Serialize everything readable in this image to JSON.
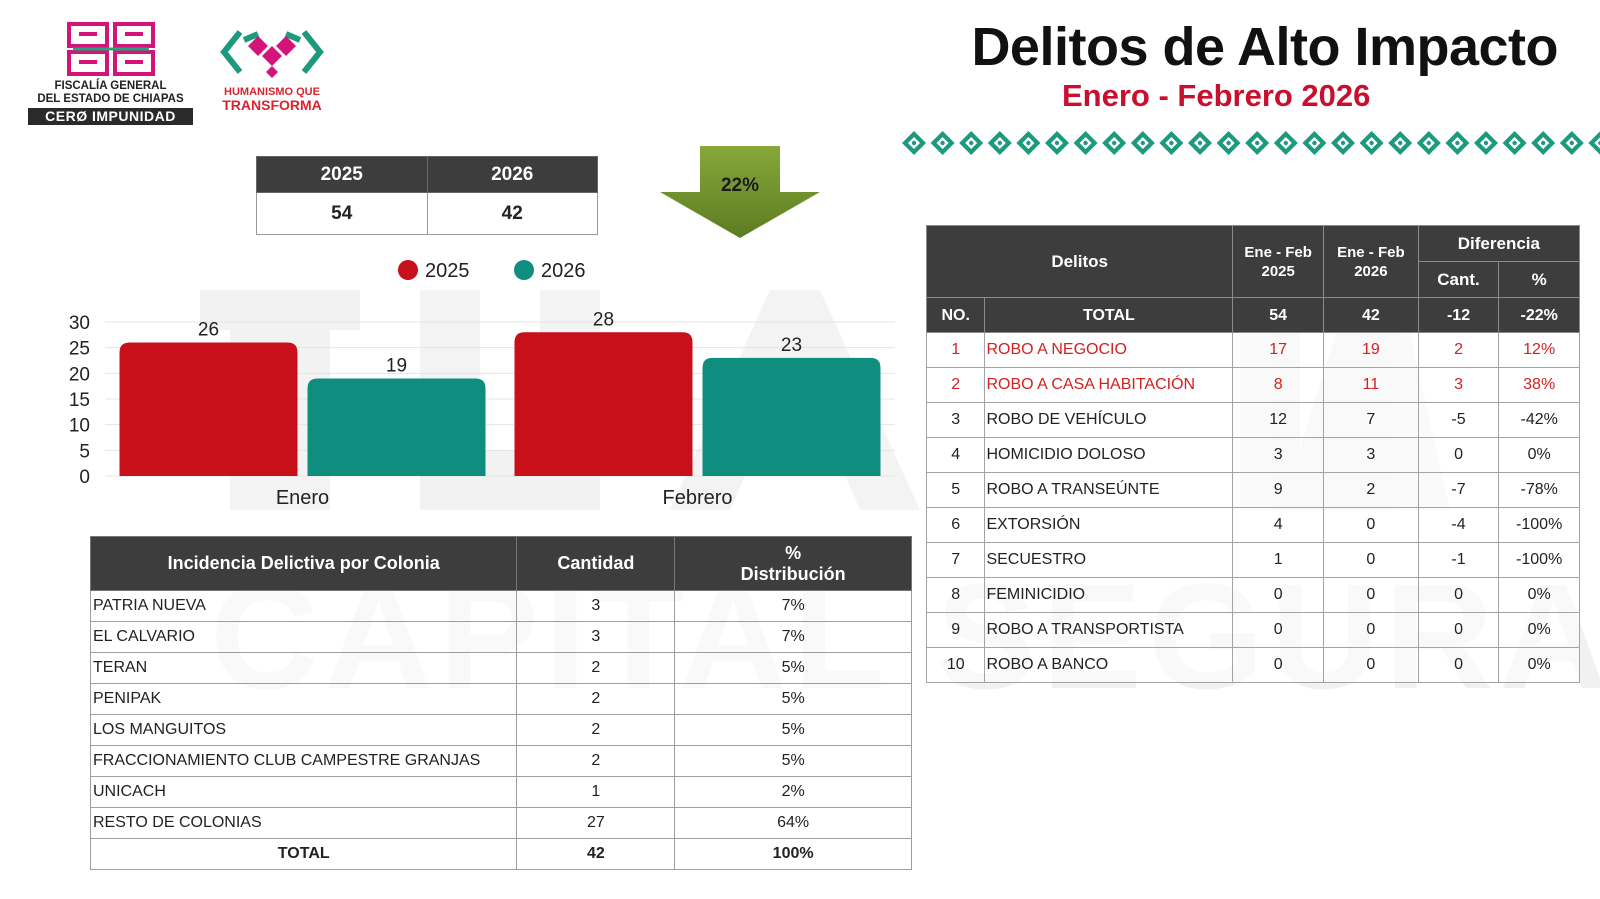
{
  "logos": {
    "fge_line1": "FISCALÍA GENERAL",
    "fge_line2": "DEL ESTADO DE CHIAPAS",
    "fge_slogan": "CERØ IMPUNIDAD",
    "hqt_line1": "HUMANISMO QUE",
    "hqt_line2": "TRANSFORMA"
  },
  "header": {
    "title": "Delitos de Alto Impacto",
    "subtitle": "Enero - Febrero 2026"
  },
  "watermark_text": "CAPITAL SEGURA",
  "summary": {
    "years": [
      "2025",
      "2026"
    ],
    "values": [
      "54",
      "42"
    ]
  },
  "change": {
    "label": "22%",
    "direction": "down"
  },
  "colors": {
    "red": "#c8101a",
    "teal": "#0f8e80",
    "dark_header": "#3d3d3d",
    "arrow_green": "#6e8f2a",
    "title_red": "#c8102e"
  },
  "chart_data": {
    "type": "bar",
    "categories": [
      "Enero",
      "Febrero"
    ],
    "series": [
      {
        "name": "2025",
        "values": [
          26,
          28
        ],
        "color": "#c8101a"
      },
      {
        "name": "2026",
        "values": [
          19,
          23
        ],
        "color": "#0f8e80"
      }
    ],
    "ylim": [
      0,
      30
    ],
    "yticks": [
      0,
      5,
      10,
      15,
      20,
      25,
      30
    ],
    "legend_position": "top",
    "grid": true
  },
  "colonia_table": {
    "headers": [
      "Incidencia Delictiva por Colonia",
      "Cantidad",
      "%",
      "Distribución"
    ],
    "rows": [
      {
        "name": "PATRIA NUEVA",
        "qty": "3",
        "pct": "7%"
      },
      {
        "name": "EL CALVARIO",
        "qty": "3",
        "pct": "7%"
      },
      {
        "name": "TERAN",
        "qty": "2",
        "pct": "5%"
      },
      {
        "name": "PENIPAK",
        "qty": "2",
        "pct": "5%"
      },
      {
        "name": "LOS MANGUITOS",
        "qty": "2",
        "pct": "5%"
      },
      {
        "name": "FRACCIONAMIENTO CLUB CAMPESTRE GRANJAS",
        "qty": "2",
        "pct": "5%"
      },
      {
        "name": "UNICACH",
        "qty": "1",
        "pct": "2%"
      },
      {
        "name": "RESTO DE COLONIAS",
        "qty": "27",
        "pct": "64%"
      }
    ],
    "total": {
      "name": "TOTAL",
      "qty": "42",
      "pct": "100%"
    }
  },
  "delitos_table": {
    "headers": {
      "delitos": "Delitos",
      "col2025": "Ene - Feb 2025",
      "col2025_a": "Ene - Feb",
      "col2025_b": "2025",
      "col2026_a": "Ene - Feb",
      "col2026_b": "2026",
      "diferencia": "Diferencia",
      "cant": "Cant.",
      "pct": "%",
      "no": "NO.",
      "total": "TOTAL"
    },
    "total": {
      "v2025": "54",
      "v2026": "42",
      "cant": "-12",
      "pct": "-22%"
    },
    "rows": [
      {
        "no": "1",
        "name": "ROBO A NEGOCIO",
        "v2025": "17",
        "v2026": "19",
        "cant": "2",
        "pct": "12%",
        "highlight": true
      },
      {
        "no": "2",
        "name": "ROBO A CASA HABITACIÓN",
        "v2025": "8",
        "v2026": "11",
        "cant": "3",
        "pct": "38%",
        "highlight": true
      },
      {
        "no": "3",
        "name": "ROBO DE VEHÍCULO",
        "v2025": "12",
        "v2026": "7",
        "cant": "-5",
        "pct": "-42%",
        "highlight": false
      },
      {
        "no": "4",
        "name": "HOMICIDIO DOLOSO",
        "v2025": "3",
        "v2026": "3",
        "cant": "0",
        "pct": "0%",
        "highlight": false
      },
      {
        "no": "5",
        "name": "ROBO A TRANSEÚNTE",
        "v2025": "9",
        "v2026": "2",
        "cant": "-7",
        "pct": "-78%",
        "highlight": false
      },
      {
        "no": "6",
        "name": "EXTORSIÓN",
        "v2025": "4",
        "v2026": "0",
        "cant": "-4",
        "pct": "-100%",
        "highlight": false
      },
      {
        "no": "7",
        "name": "SECUESTRO",
        "v2025": "1",
        "v2026": "0",
        "cant": "-1",
        "pct": "-100%",
        "highlight": false
      },
      {
        "no": "8",
        "name": "FEMINICIDIO",
        "v2025": "0",
        "v2026": "0",
        "cant": "0",
        "pct": "0%",
        "highlight": false
      },
      {
        "no": "9",
        "name": "ROBO A TRANSPORTISTA",
        "v2025": "0",
        "v2026": "0",
        "cant": "0",
        "pct": "0%",
        "highlight": false
      },
      {
        "no": "10",
        "name": "ROBO A BANCO",
        "v2025": "0",
        "v2026": "0",
        "cant": "0",
        "pct": "0%",
        "highlight": false
      }
    ]
  }
}
